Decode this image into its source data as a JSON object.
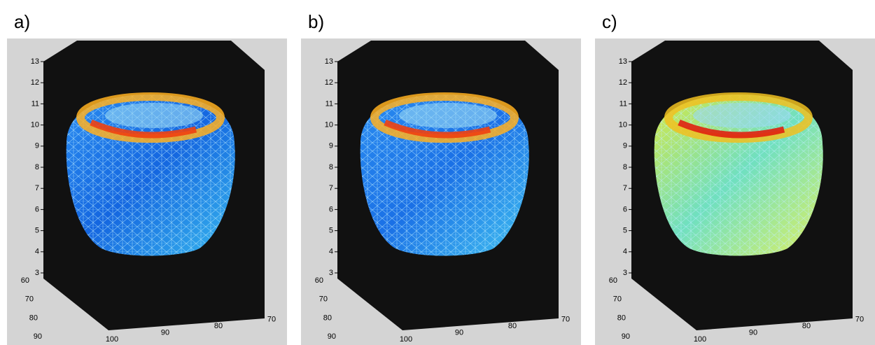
{
  "panels": [
    {
      "label": "a)",
      "z_ticks": [
        3,
        4,
        5,
        6,
        7,
        8,
        9,
        10,
        11,
        12,
        13
      ],
      "y_ticks": [
        60,
        70,
        80,
        90
      ],
      "x_ticks": [
        100,
        90,
        80,
        70
      ]
    },
    {
      "label": "b)",
      "z_ticks": [
        3,
        4,
        5,
        6,
        7,
        8,
        9,
        10,
        11,
        12,
        13
      ],
      "y_ticks": [
        60,
        70,
        80,
        90
      ],
      "x_ticks": [
        100,
        90,
        80,
        70
      ]
    },
    {
      "label": "c)",
      "z_ticks": [
        3,
        4,
        5,
        6,
        7,
        8,
        9,
        10,
        11,
        12,
        13
      ],
      "y_ticks": [
        60,
        70,
        80,
        90
      ],
      "x_ticks": [
        100,
        90,
        80,
        70
      ]
    }
  ]
}
